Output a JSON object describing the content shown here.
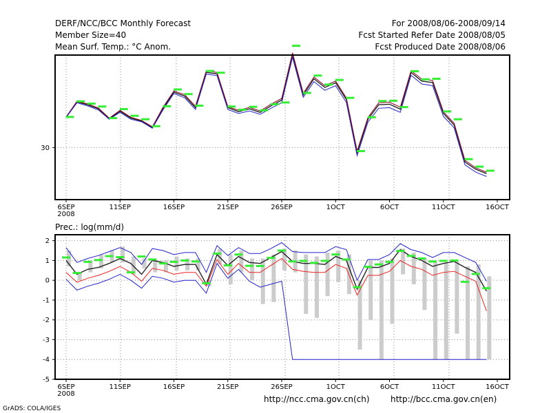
{
  "header": {
    "title": "DERF/NCC/BCC Monthly Forecast",
    "member_size": "Member Size=40",
    "variable": "Mean Surf. Temp.: °C Anom.",
    "period": "For 2008/08/06-2008/09/14",
    "started": "Fcst Started Refer Date 2008/08/05",
    "produced": "Fcst Produced Date 2008/08/06"
  },
  "footer": {
    "grads": "GrADS: COLA/IGES",
    "url_ch": "http://ncc.cma.gov.cn(ch)",
    "url_en": "http://bcc.cma.gov.cn(en)"
  },
  "colors": {
    "green": "#33ee33",
    "blue": "#2222cc",
    "red": "#ee2222",
    "dark": "#222222",
    "maroon": "#880022",
    "bar": "#cccccc"
  },
  "chart_data": [
    {
      "type": "line",
      "title": "Mean Surf. Temp.: °C Anom.",
      "xlabel": "",
      "ylabel": "",
      "x_range": [
        1,
        41
      ],
      "ylim": [
        28.2,
        33.2
      ],
      "ytick_labels": [
        {
          "v": 30,
          "label": "30"
        }
      ],
      "xtick_labels": [
        {
          "x": 1,
          "label": "6SEP",
          "sub": "2008"
        },
        {
          "x": 6,
          "label": "11SEP"
        },
        {
          "x": 11,
          "label": "16SEP"
        },
        {
          "x": 16,
          "label": "21SEP"
        },
        {
          "x": 21,
          "label": "26SEP"
        },
        {
          "x": 26,
          "label": "1OCT"
        },
        {
          "x": 31,
          "label": "6OCT"
        },
        {
          "x": 36,
          "label": "11OCT"
        },
        {
          "x": 41,
          "label": "16OCT"
        }
      ],
      "x": [
        1,
        2,
        3,
        4,
        5,
        6,
        7,
        8,
        9,
        10,
        11,
        12,
        13,
        14,
        15,
        16,
        17,
        18,
        19,
        20,
        21,
        22,
        23,
        24,
        25,
        26,
        27,
        28,
        29,
        30,
        31,
        32,
        33,
        34,
        35,
        36,
        37,
        38,
        39,
        40
      ],
      "series": [
        {
          "name": "observed",
          "style": "dash",
          "color": "#33ee33",
          "values": [
            31.06,
            31.6,
            31.52,
            31.42,
            31.02,
            31.33,
            31.1,
            30.98,
            30.74,
            31.43,
            32.01,
            31.85,
            31.45,
            32.65,
            32.59,
            31.42,
            31.31,
            31.41,
            31.29,
            31.5,
            31.56,
            33.52,
            31.89,
            32.49,
            32.18,
            32.34,
            31.72,
            29.88,
            31.05,
            31.61,
            31.62,
            31.4,
            32.64,
            32.36,
            32.38,
            31.25,
            30.98,
            29.6,
            29.34,
            29.2
          ],
          "offset_x": 0.35
        },
        {
          "name": "ensemble mean",
          "color": "#222222",
          "values": [
            31.05,
            31.58,
            31.48,
            31.34,
            31.0,
            31.26,
            31.02,
            30.92,
            30.7,
            31.36,
            31.92,
            31.78,
            31.38,
            32.6,
            32.55,
            31.38,
            31.24,
            31.34,
            31.22,
            31.44,
            31.64,
            33.22,
            31.82,
            32.38,
            32.08,
            32.24,
            31.66,
            29.82,
            30.98,
            31.48,
            31.5,
            31.33,
            32.6,
            32.3,
            32.25,
            31.18,
            30.78,
            29.5,
            29.25,
            29.1
          ]
        },
        {
          "name": "member max",
          "color": "#880022",
          "values": [
            31.06,
            31.6,
            31.51,
            31.37,
            31.02,
            31.29,
            31.05,
            30.94,
            30.72,
            31.4,
            31.96,
            31.83,
            31.43,
            32.65,
            32.6,
            31.42,
            31.29,
            31.39,
            31.27,
            31.5,
            31.7,
            33.28,
            31.88,
            32.44,
            32.14,
            32.3,
            31.72,
            29.88,
            31.04,
            31.55,
            31.57,
            31.4,
            32.66,
            32.37,
            32.32,
            31.24,
            30.84,
            29.56,
            29.3,
            29.15
          ]
        },
        {
          "name": "member min",
          "color": "#2222cc",
          "values": [
            31.04,
            31.55,
            31.44,
            31.3,
            30.98,
            31.22,
            30.98,
            30.89,
            30.67,
            31.31,
            31.87,
            31.72,
            31.32,
            32.54,
            32.49,
            31.32,
            31.18,
            31.27,
            31.15,
            31.36,
            31.55,
            33.12,
            31.74,
            32.28,
            31.98,
            32.14,
            31.56,
            29.72,
            30.88,
            31.36,
            31.38,
            31.22,
            32.5,
            32.2,
            32.14,
            31.08,
            30.68,
            29.4,
            29.15,
            29.0
          ]
        }
      ]
    },
    {
      "type": "line",
      "title": "Prec.: log(mm/d)",
      "xlabel": "",
      "ylabel": "",
      "x_range": [
        1,
        41
      ],
      "ylim": [
        -5,
        2.3
      ],
      "ytick_labels": [
        {
          "v": 2,
          "label": "2"
        },
        {
          "v": 1,
          "label": "1"
        },
        {
          "v": 0,
          "label": "0"
        },
        {
          "v": -1,
          "label": "-1"
        },
        {
          "v": -2,
          "label": "-2"
        },
        {
          "v": -3,
          "label": "-3"
        },
        {
          "v": -4,
          "label": "-4"
        },
        {
          "v": -5,
          "label": "-5"
        }
      ],
      "xtick_labels": [
        {
          "x": 1,
          "label": "6SEP",
          "sub": "2008"
        },
        {
          "x": 6,
          "label": "11SEP"
        },
        {
          "x": 11,
          "label": "16SEP"
        },
        {
          "x": 16,
          "label": "21SEP"
        },
        {
          "x": 21,
          "label": "26SEP"
        },
        {
          "x": 26,
          "label": "1OCT"
        },
        {
          "x": 31,
          "label": "6OCT"
        },
        {
          "x": 36,
          "label": "11OCT"
        },
        {
          "x": 41,
          "label": "16OCT"
        }
      ],
      "x": [
        1,
        2,
        3,
        4,
        5,
        6,
        7,
        8,
        9,
        10,
        11,
        12,
        13,
        14,
        15,
        16,
        17,
        18,
        19,
        20,
        21,
        22,
        23,
        24,
        25,
        26,
        27,
        28,
        29,
        30,
        31,
        32,
        33,
        34,
        35,
        36,
        37,
        38,
        39,
        40
      ],
      "bars": {
        "name": "observed range",
        "color": "#cccccc",
        "top": [
          1.5,
          0.4,
          1.0,
          1.3,
          1.5,
          1.7,
          1.2,
          1.1,
          1.0,
          1.0,
          1.2,
          1.1,
          1.1,
          0.0,
          1.6,
          1.3,
          1.5,
          1.1,
          1.1,
          1.3,
          1.6,
          1.5,
          1.3,
          1.2,
          1.4,
          1.5,
          1.3,
          0.0,
          1.0,
          1.0,
          1.1,
          1.6,
          1.4,
          1.1,
          0.9,
          0.9,
          1.0,
          0.7,
          0.8,
          0.2
        ],
        "bottom": [
          0.7,
          0.0,
          0.4,
          0.6,
          0.9,
          0.9,
          0.3,
          0.6,
          0.4,
          0.4,
          0.5,
          0.5,
          0.5,
          -0.3,
          0.8,
          -0.2,
          0.4,
          0.0,
          -1.2,
          -1.1,
          0.5,
          0.4,
          -1.7,
          -1.9,
          -0.8,
          -0.1,
          -0.7,
          -3.5,
          -2.0,
          -4.0,
          -2.2,
          0.3,
          -0.2,
          -1.5,
          -4.0,
          -4.0,
          -2.7,
          -4.0,
          -4.0,
          -4.0
        ]
      },
      "series": [
        {
          "name": "observed",
          "style": "dash",
          "color": "#33ee33",
          "values": [
            1.15,
            0.37,
            0.93,
            1.02,
            1.22,
            1.17,
            0.4,
            1.2,
            1.05,
            0.85,
            0.93,
            1.0,
            0.95,
            -0.15,
            1.35,
            0.75,
            1.3,
            0.73,
            0.72,
            1.13,
            1.5,
            0.95,
            0.98,
            0.88,
            0.98,
            1.3,
            1.05,
            -0.35,
            0.68,
            0.8,
            0.93,
            1.48,
            1.23,
            1.1,
            0.95,
            0.98,
            1.0,
            -0.08,
            0.32,
            -0.4
          ]
        },
        {
          "name": "ensemble mean",
          "color": "#222222",
          "values": [
            1.0,
            0.3,
            0.55,
            0.65,
            0.85,
            1.1,
            0.85,
            0.3,
            1.0,
            0.9,
            0.7,
            0.8,
            0.8,
            -0.2,
            1.3,
            0.75,
            1.2,
            0.9,
            0.85,
            1.15,
            1.45,
            0.95,
            0.85,
            0.85,
            0.8,
            1.2,
            1.0,
            -0.45,
            0.65,
            0.65,
            0.85,
            1.55,
            1.2,
            1.0,
            0.7,
            0.85,
            0.95,
            0.65,
            0.4,
            -0.55
          ]
        },
        {
          "name": "member max",
          "color": "#2222cc",
          "values": [
            1.65,
            0.9,
            1.1,
            1.25,
            1.45,
            1.65,
            1.4,
            0.8,
            1.6,
            1.5,
            1.3,
            1.4,
            1.4,
            0.4,
            1.75,
            1.25,
            1.65,
            1.35,
            1.35,
            1.6,
            1.9,
            1.45,
            1.4,
            1.4,
            1.4,
            1.7,
            1.55,
            0.0,
            1.05,
            1.05,
            1.3,
            1.85,
            1.55,
            1.4,
            1.15,
            1.4,
            1.4,
            1.15,
            0.9,
            -0.05
          ]
        },
        {
          "name": "member min",
          "color": "#2222cc",
          "values": [
            0.05,
            -0.5,
            -0.3,
            -0.15,
            0.05,
            0.3,
            0.0,
            -0.4,
            0.2,
            0.1,
            -0.1,
            0.0,
            0.0,
            -0.65,
            0.85,
            0.1,
            0.55,
            -0.05,
            -0.35,
            -0.2,
            -0.05,
            -4.0,
            -4.0,
            -4.0,
            -4.0,
            -4.0,
            -4.0,
            -4.0,
            -4.0,
            -4.0,
            -4.0,
            -4.0,
            -4.0,
            -4.0,
            -4.0,
            -4.0,
            -4.0,
            -4.0,
            -4.0,
            -4.0
          ]
        },
        {
          "name": "lower percentile",
          "color": "#ee2222",
          "values": [
            0.4,
            -0.1,
            0.1,
            0.25,
            0.45,
            0.7,
            0.4,
            -0.05,
            0.6,
            0.5,
            0.3,
            0.4,
            0.4,
            -0.3,
            1.05,
            0.3,
            0.85,
            0.4,
            0.4,
            0.75,
            1.1,
            0.55,
            0.45,
            0.4,
            0.4,
            0.8,
            0.6,
            -0.75,
            0.25,
            0.25,
            0.45,
            1.0,
            0.7,
            0.55,
            0.25,
            0.4,
            0.45,
            0.2,
            -0.05,
            -1.55
          ]
        }
      ]
    }
  ]
}
